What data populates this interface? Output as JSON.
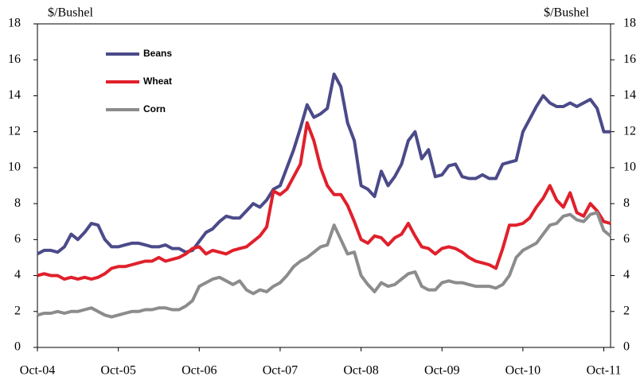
{
  "chart_data": {
    "type": "line",
    "ylabel": "$/Bushel",
    "y2label": "$/Bushel",
    "x": [
      "2004-10",
      "2004-11",
      "2004-12",
      "2005-01",
      "2005-02",
      "2005-03",
      "2005-04",
      "2005-05",
      "2005-06",
      "2005-07",
      "2005-08",
      "2005-09",
      "2005-10",
      "2005-11",
      "2005-12",
      "2006-01",
      "2006-02",
      "2006-03",
      "2006-04",
      "2006-05",
      "2006-06",
      "2006-07",
      "2006-08",
      "2006-09",
      "2006-10",
      "2006-11",
      "2006-12",
      "2007-01",
      "2007-02",
      "2007-03",
      "2007-04",
      "2007-05",
      "2007-06",
      "2007-07",
      "2007-08",
      "2007-09",
      "2007-10",
      "2007-11",
      "2007-12",
      "2008-01",
      "2008-02",
      "2008-03",
      "2008-04",
      "2008-05",
      "2008-06",
      "2008-07",
      "2008-08",
      "2008-09",
      "2008-10",
      "2008-11",
      "2008-12",
      "2009-01",
      "2009-02",
      "2009-03",
      "2009-04",
      "2009-05",
      "2009-06",
      "2009-07",
      "2009-08",
      "2009-09",
      "2009-10",
      "2009-11",
      "2009-12",
      "2010-01",
      "2010-02",
      "2010-03",
      "2010-04",
      "2010-05",
      "2010-06",
      "2010-07",
      "2010-08",
      "2010-09",
      "2010-10",
      "2010-11",
      "2010-12",
      "2011-01",
      "2011-02",
      "2011-03",
      "2011-04",
      "2011-05",
      "2011-06",
      "2011-07",
      "2011-08",
      "2011-09",
      "2011-10",
      "2011-11"
    ],
    "series": [
      {
        "name": "Beans",
        "color": "#4b4a89",
        "values": [
          5.2,
          5.4,
          5.4,
          5.3,
          5.6,
          6.3,
          6.0,
          6.4,
          6.9,
          6.8,
          6.0,
          5.6,
          5.6,
          5.7,
          5.8,
          5.8,
          5.7,
          5.6,
          5.6,
          5.7,
          5.5,
          5.5,
          5.3,
          5.4,
          5.9,
          6.4,
          6.6,
          7.0,
          7.3,
          7.2,
          7.2,
          7.6,
          8.0,
          7.8,
          8.2,
          8.8,
          9.0,
          10.0,
          11.0,
          12.2,
          13.5,
          12.8,
          13.0,
          13.3,
          15.2,
          14.5,
          12.5,
          11.5,
          9.0,
          8.8,
          8.4,
          9.8,
          9.0,
          9.5,
          10.2,
          11.5,
          12.0,
          10.5,
          11.0,
          9.5,
          9.6,
          10.1,
          10.2,
          9.5,
          9.4,
          9.4,
          9.6,
          9.4,
          9.4,
          10.2,
          10.3,
          10.4,
          12.0,
          12.7,
          13.4,
          14.0,
          13.6,
          13.4,
          13.4,
          13.6,
          13.4,
          13.6,
          13.8,
          13.3,
          12.0,
          12.0
        ]
      },
      {
        "name": "Wheat",
        "color": "#e0202b",
        "values": [
          4.0,
          4.1,
          4.0,
          4.0,
          3.8,
          3.9,
          3.8,
          3.9,
          3.8,
          3.9,
          4.1,
          4.4,
          4.5,
          4.5,
          4.6,
          4.7,
          4.8,
          4.8,
          5.0,
          4.8,
          4.9,
          5.0,
          5.2,
          5.5,
          5.6,
          5.2,
          5.4,
          5.3,
          5.2,
          5.4,
          5.5,
          5.6,
          5.9,
          6.2,
          6.7,
          8.7,
          8.5,
          8.8,
          9.5,
          10.2,
          12.5,
          11.5,
          10.0,
          9.0,
          8.5,
          8.5,
          7.9,
          7.0,
          6.0,
          5.8,
          6.2,
          6.1,
          5.7,
          6.1,
          6.3,
          6.9,
          6.2,
          5.6,
          5.5,
          5.2,
          5.5,
          5.6,
          5.5,
          5.3,
          5.0,
          4.8,
          4.7,
          4.6,
          4.4,
          5.5,
          6.8,
          6.8,
          6.9,
          7.2,
          7.8,
          8.3,
          9.0,
          8.2,
          7.8,
          8.6,
          7.5,
          7.3,
          8.0,
          7.6,
          7.0,
          6.9
        ]
      },
      {
        "name": "Corn",
        "color": "#8c8c8c",
        "values": [
          1.8,
          1.9,
          1.9,
          2.0,
          1.9,
          2.0,
          2.0,
          2.1,
          2.2,
          2.0,
          1.8,
          1.7,
          1.8,
          1.9,
          2.0,
          2.0,
          2.1,
          2.1,
          2.2,
          2.2,
          2.1,
          2.1,
          2.3,
          2.6,
          3.4,
          3.6,
          3.8,
          3.9,
          3.7,
          3.5,
          3.7,
          3.2,
          3.0,
          3.2,
          3.1,
          3.4,
          3.6,
          4.0,
          4.5,
          4.8,
          5.0,
          5.3,
          5.6,
          5.7,
          6.8,
          6.0,
          5.2,
          5.3,
          4.0,
          3.5,
          3.1,
          3.6,
          3.4,
          3.5,
          3.8,
          4.1,
          4.2,
          3.4,
          3.2,
          3.2,
          3.6,
          3.7,
          3.6,
          3.6,
          3.5,
          3.4,
          3.4,
          3.4,
          3.3,
          3.5,
          4.0,
          5.0,
          5.4,
          5.6,
          5.8,
          6.3,
          6.8,
          6.9,
          7.3,
          7.4,
          7.1,
          7.0,
          7.4,
          7.5,
          6.5,
          6.2
        ]
      }
    ],
    "xlim": [
      "2004-10",
      "2011-11"
    ],
    "xticks": [
      {
        "value": "2004-10",
        "label": "Oct-04"
      },
      {
        "value": "2005-10",
        "label": "Oct-05"
      },
      {
        "value": "2006-10",
        "label": "Oct-06"
      },
      {
        "value": "2007-10",
        "label": "Oct-07"
      },
      {
        "value": "2008-10",
        "label": "Oct-08"
      },
      {
        "value": "2009-10",
        "label": "Oct-09"
      },
      {
        "value": "2010-10",
        "label": "Oct-10"
      },
      {
        "value": "2011-10",
        "label": "Oct-11"
      }
    ],
    "ylim": [
      0,
      18
    ],
    "yticks": [
      0,
      2,
      4,
      6,
      8,
      10,
      12,
      14,
      16,
      18
    ],
    "y2lim": [
      0,
      18
    ],
    "y2ticks": [
      0,
      2,
      4,
      6,
      8,
      10,
      12,
      14,
      16,
      18
    ],
    "legend": "upper left",
    "grid": false
  }
}
